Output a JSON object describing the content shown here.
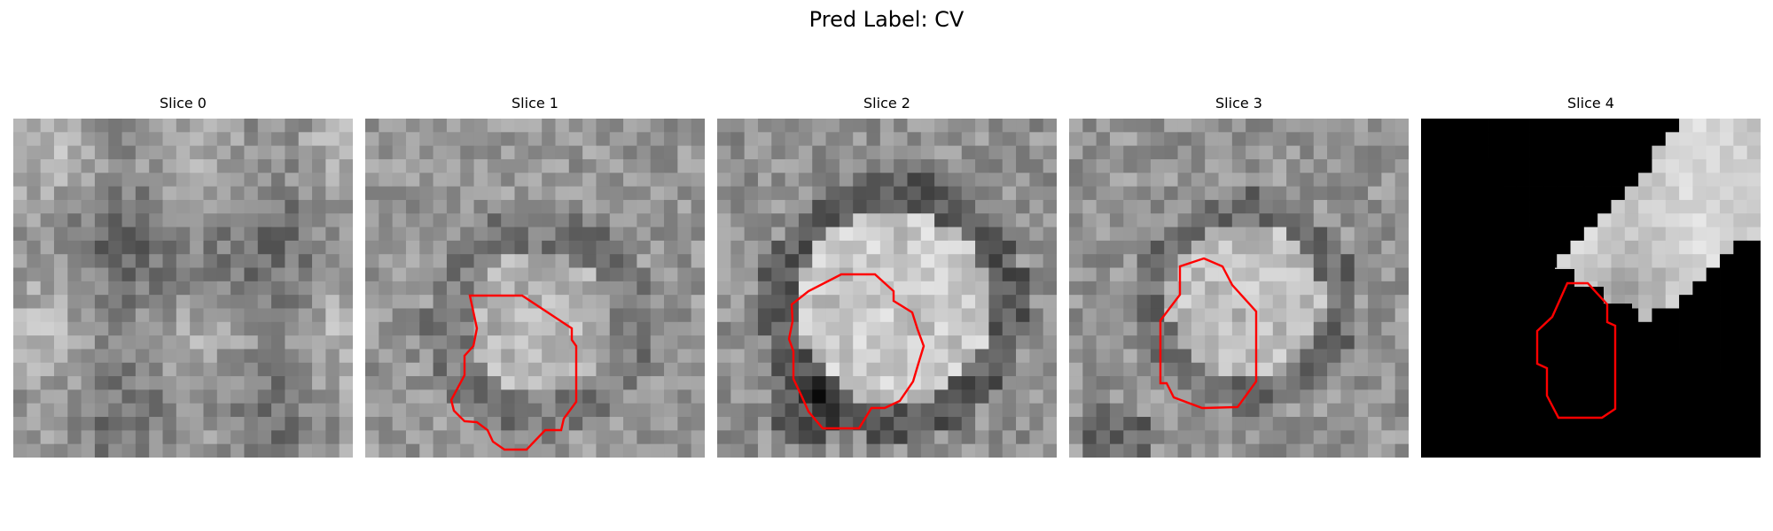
{
  "figure": {
    "title": "Pred Label: CV"
  },
  "panels": [
    {
      "title": "Slice 0",
      "contour": false,
      "mask": "none",
      "fill_color": "#000000",
      "contour_color": "#ff0000"
    },
    {
      "title": "Slice 1",
      "contour": true,
      "mask": "none",
      "fill_color": "#000000",
      "contour_color": "#ff0000"
    },
    {
      "title": "Slice 2",
      "contour": true,
      "mask": "none",
      "fill_color": "#000000",
      "contour_color": "#ff0000"
    },
    {
      "title": "Slice 3",
      "contour": true,
      "mask": "none",
      "fill_color": "#000000",
      "contour_color": "#ff0000"
    },
    {
      "title": "Slice 4",
      "contour": true,
      "mask": "black-wedge-left-and-bottom-right",
      "fill_color": "#000000",
      "contour_color": "#ff0000"
    }
  ]
}
